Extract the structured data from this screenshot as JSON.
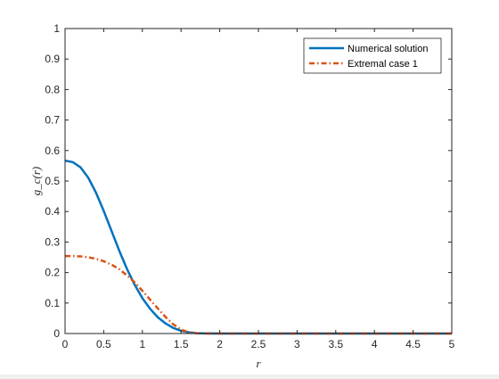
{
  "chart_data": {
    "type": "line",
    "xlabel": "r",
    "ylabel": "g_c(r)",
    "xlim": [
      0,
      5
    ],
    "ylim": [
      0,
      1
    ],
    "x_ticks": [
      "0",
      "0.5",
      "1",
      "1.5",
      "2",
      "2.5",
      "3",
      "3.5",
      "4",
      "4.5",
      "5"
    ],
    "y_ticks": [
      "0",
      "0.1",
      "0.2",
      "0.3",
      "0.4",
      "0.5",
      "0.6",
      "0.7",
      "0.8",
      "0.9",
      "1"
    ],
    "grid": false,
    "legend_position": "top-right",
    "series": [
      {
        "name": "Numerical solution",
        "color": "#0072bd",
        "line_style": "solid",
        "x": [
          0,
          0.1,
          0.2,
          0.3,
          0.4,
          0.5,
          0.6,
          0.7,
          0.8,
          0.9,
          1.0,
          1.1,
          1.2,
          1.3,
          1.4,
          1.5,
          1.6,
          1.7,
          1.8,
          2.0,
          2.5,
          3.0,
          3.5,
          4.0,
          4.5,
          5.0
        ],
        "y": [
          0.567,
          0.562,
          0.545,
          0.511,
          0.462,
          0.402,
          0.337,
          0.272,
          0.212,
          0.16,
          0.116,
          0.081,
          0.053,
          0.033,
          0.018,
          0.009,
          0.004,
          0.001,
          0.0003,
          0,
          0,
          0,
          0,
          0,
          0,
          0
        ]
      },
      {
        "name": "Extremal case 1",
        "color": "#d95319",
        "line_style": "dash-dot",
        "x": [
          0,
          0.1,
          0.2,
          0.3,
          0.4,
          0.5,
          0.6,
          0.7,
          0.8,
          0.9,
          1.0,
          1.1,
          1.2,
          1.3,
          1.4,
          1.5,
          1.6,
          1.7,
          1.8,
          2.0,
          2.5,
          3.0,
          3.5,
          4.0,
          4.5,
          5.0
        ],
        "y": [
          0.254,
          0.254,
          0.253,
          0.25,
          0.245,
          0.237,
          0.226,
          0.211,
          0.191,
          0.168,
          0.14,
          0.111,
          0.082,
          0.054,
          0.03,
          0.013,
          0.004,
          0.001,
          0.0002,
          0,
          0,
          0,
          0,
          0,
          0,
          0
        ]
      }
    ]
  }
}
